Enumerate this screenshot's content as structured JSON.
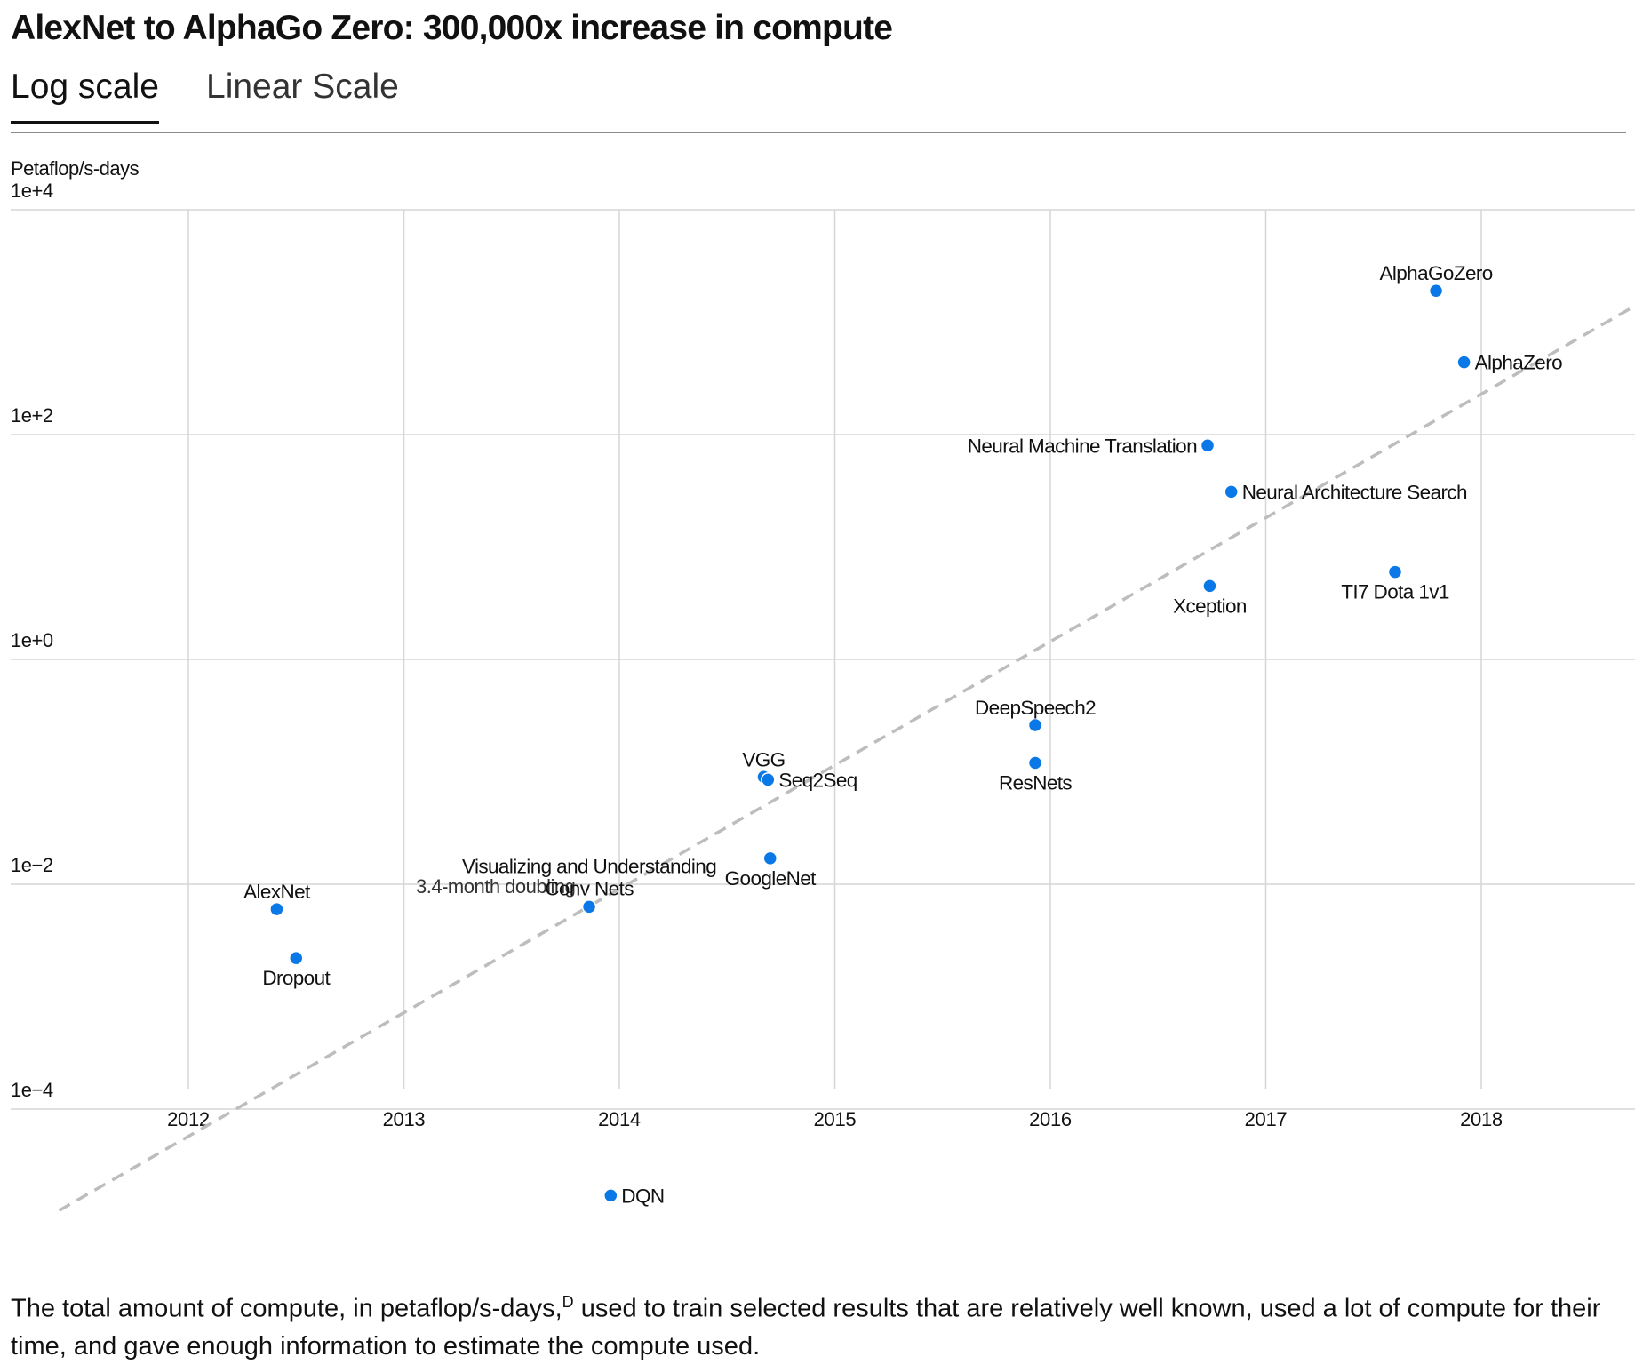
{
  "title": "AlexNet to AlphaGo Zero: 300,000x increase in compute",
  "tabs": [
    {
      "label": "Log scale",
      "active": true
    },
    {
      "label": "Linear Scale",
      "active": false
    }
  ],
  "caption": {
    "text_before": "The total amount of compute, in petaflop/s-days,",
    "footnote_marker": "D",
    "text_after": " used to train selected results that are relatively well known, used a lot of compute for their time, and gave enough information to estimate the compute used."
  },
  "colors": {
    "point": "#0a78e6",
    "trend_line": "#bdbdbd",
    "grid": "#d6d6d6"
  },
  "chart_data": {
    "type": "scatter",
    "title": "",
    "ylabel": "Petaflop/s-days",
    "xlabel": "",
    "y_scale": "log",
    "ylim": [
      1e-05,
      10000
    ],
    "xlim": [
      2011.4,
      2018.7
    ],
    "y_ticks": [
      {
        "value": 10000,
        "label": "1e+4"
      },
      {
        "value": 100,
        "label": "1e+2"
      },
      {
        "value": 1,
        "label": "1e+0"
      },
      {
        "value": 0.01,
        "label": "1e−2"
      },
      {
        "value": 0.0001,
        "label": "1e−4"
      }
    ],
    "x_ticks": [
      2012,
      2013,
      2014,
      2015,
      2016,
      2017,
      2018
    ],
    "grid": true,
    "points": [
      {
        "name": "AlexNet",
        "x": 2012.41,
        "y": 0.006,
        "label_pos": "above"
      },
      {
        "name": "Dropout",
        "x": 2012.5,
        "y": 0.0022,
        "label_pos": "below"
      },
      {
        "name": "Visualizing and Understanding Conv Nets",
        "x": 2013.86,
        "y": 0.0063,
        "label_pos": "above"
      },
      {
        "name": "DQN",
        "x": 2013.96,
        "y": 1.7e-05,
        "label_pos": "right"
      },
      {
        "name": "VGG",
        "x": 2014.67,
        "y": 0.09,
        "label_pos": "above"
      },
      {
        "name": "Seq2Seq",
        "x": 2014.69,
        "y": 0.085,
        "label_pos": "right"
      },
      {
        "name": "GoogleNet",
        "x": 2014.7,
        "y": 0.017,
        "label_pos": "below"
      },
      {
        "name": "DeepSpeech2",
        "x": 2015.93,
        "y": 0.26,
        "label_pos": "above"
      },
      {
        "name": "ResNets",
        "x": 2015.93,
        "y": 0.12,
        "label_pos": "below"
      },
      {
        "name": "Xception",
        "x": 2016.74,
        "y": 4.5,
        "label_pos": "below"
      },
      {
        "name": "Neural Machine Translation",
        "x": 2016.73,
        "y": 80,
        "label_pos": "left"
      },
      {
        "name": "Neural Architecture Search",
        "x": 2016.84,
        "y": 31,
        "label_pos": "right"
      },
      {
        "name": "TI7 Dota 1v1",
        "x": 2017.6,
        "y": 6,
        "label_pos": "below"
      },
      {
        "name": "AlphaGoZero",
        "x": 2017.79,
        "y": 1900,
        "label_pos": "above"
      },
      {
        "name": "AlphaZero",
        "x": 2017.92,
        "y": 440,
        "label_pos": "right"
      }
    ],
    "trend": {
      "label": "3.4-month doubling",
      "start": {
        "x": 2011.4,
        "y": 1.25e-05
      },
      "end": {
        "x": 2018.7,
        "y": 1350
      }
    }
  }
}
